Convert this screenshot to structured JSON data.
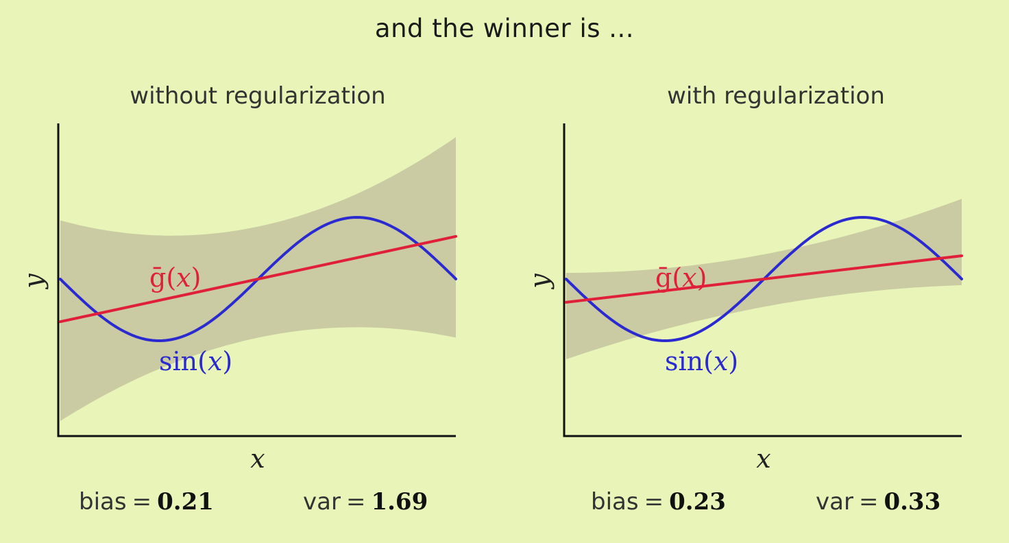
{
  "slide": {
    "title": "and the winner is ..."
  },
  "chart_data": [
    {
      "type": "line",
      "title": "without regularization",
      "xlabel": "x",
      "ylabel": "y",
      "grid": false,
      "legend": "none",
      "x_range": [
        -3.14,
        3.14
      ],
      "y_range": [
        -2.3,
        2.3
      ],
      "series": [
        {
          "name": "sin(x)",
          "label_parts": [
            "sin(",
            "x",
            ")"
          ],
          "color": "#2a2ad0",
          "function": "sin"
        },
        {
          "name": "ḡ(x)",
          "label_parts": [
            "ḡ(",
            "x",
            ")"
          ],
          "color": "#e0203a",
          "slope": 0.22,
          "intercept": 0.0
        }
      ],
      "band": {
        "color": "#c8c8a0",
        "lower_at_xmin": -2.3,
        "lower_at_xmid": -0.95,
        "lower_at_xmax": -0.95,
        "upper_at_xmin": 0.95,
        "upper_at_xmid": 0.85,
        "upper_at_xmax": 2.3
      },
      "stats": {
        "bias_label": "bias",
        "bias_value": "0.21",
        "var_label": "var",
        "var_value": "1.69"
      }
    },
    {
      "type": "line",
      "title": "with regularization",
      "xlabel": "x",
      "ylabel": "y",
      "grid": false,
      "legend": "none",
      "x_range": [
        -3.14,
        3.14
      ],
      "y_range": [
        -2.3,
        2.3
      ],
      "series": [
        {
          "name": "sin(x)",
          "label_parts": [
            "sin(",
            "x",
            ")"
          ],
          "color": "#2a2ad0",
          "function": "sin"
        },
        {
          "name": "ḡ(x)",
          "label_parts": [
            "ḡ(",
            "x",
            ")"
          ],
          "color": "#e0203a",
          "slope": 0.12,
          "intercept": 0.0
        }
      ],
      "band": {
        "color": "#c8c8a0",
        "lower_at_xmin": -1.3,
        "lower_at_xmid": -0.45,
        "lower_at_xmax": -0.1,
        "upper_at_xmin": 0.1,
        "upper_at_xmid": 0.4,
        "upper_at_xmax": 1.3
      },
      "stats": {
        "bias_label": "bias",
        "bias_value": "0.23",
        "var_label": "var",
        "var_value": "0.33"
      }
    }
  ]
}
